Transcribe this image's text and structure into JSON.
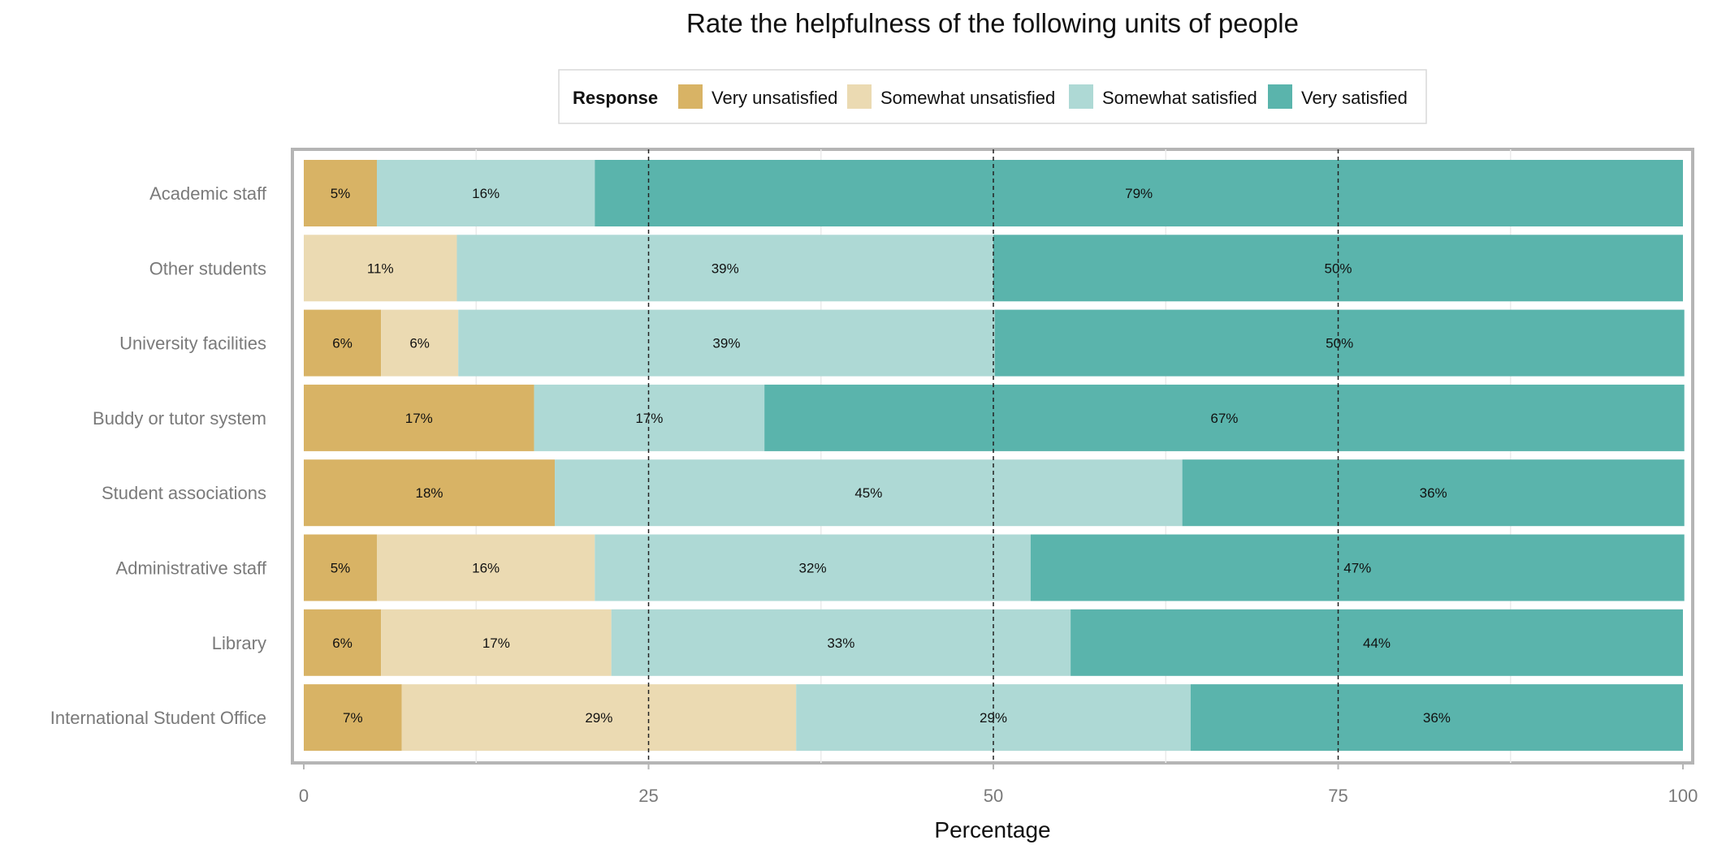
{
  "chart_data": {
    "type": "bar",
    "orientation": "horizontal",
    "stacked": true,
    "title": "Rate the helpfulness of the following units of people",
    "xlabel": "Percentage",
    "ylabel": "",
    "xlim": [
      0,
      100
    ],
    "xticks": [
      "0",
      "25",
      "50",
      "75",
      "100"
    ],
    "reference_lines": [
      25,
      50,
      75
    ],
    "grid": true,
    "legend": {
      "title": "Response",
      "position": "top",
      "entries": [
        "Very unsatisfied",
        "Somewhat unsatisfied",
        "Somewhat satisfied",
        "Very satisfied"
      ]
    },
    "categories": [
      "Academic staff",
      "Other students",
      "University facilities",
      "Buddy or tutor system",
      "Student associations",
      "Administrative staff",
      "Library",
      "International Student Office"
    ],
    "series": [
      {
        "name": "Very unsatisfied",
        "color": "#d8b365",
        "values": [
          5.3,
          0,
          5.6,
          16.7,
          18.2,
          5.3,
          5.6,
          7.1
        ],
        "labels": [
          "5%",
          "",
          "6%",
          "17%",
          "18%",
          "5%",
          "6%",
          "7%"
        ]
      },
      {
        "name": "Somewhat unsatisfied",
        "color": "#ebdab2",
        "values": [
          0,
          11.1,
          5.6,
          0,
          0,
          15.8,
          16.7,
          28.6
        ],
        "labels": [
          "",
          "11%",
          "6%",
          "",
          "",
          "16%",
          "17%",
          "29%"
        ]
      },
      {
        "name": "Somewhat satisfied",
        "color": "#aed9d5",
        "values": [
          15.8,
          38.9,
          38.9,
          16.7,
          45.5,
          31.6,
          33.3,
          28.6
        ],
        "labels": [
          "16%",
          "39%",
          "39%",
          "17%",
          "45%",
          "32%",
          "33%",
          "29%"
        ]
      },
      {
        "name": "Very satisfied",
        "color": "#5ab4ac",
        "values": [
          78.9,
          50.0,
          50.0,
          66.7,
          36.4,
          47.4,
          44.4,
          35.7
        ],
        "labels": [
          "79%",
          "50%",
          "50%",
          "67%",
          "36%",
          "47%",
          "44%",
          "36%"
        ]
      }
    ]
  }
}
